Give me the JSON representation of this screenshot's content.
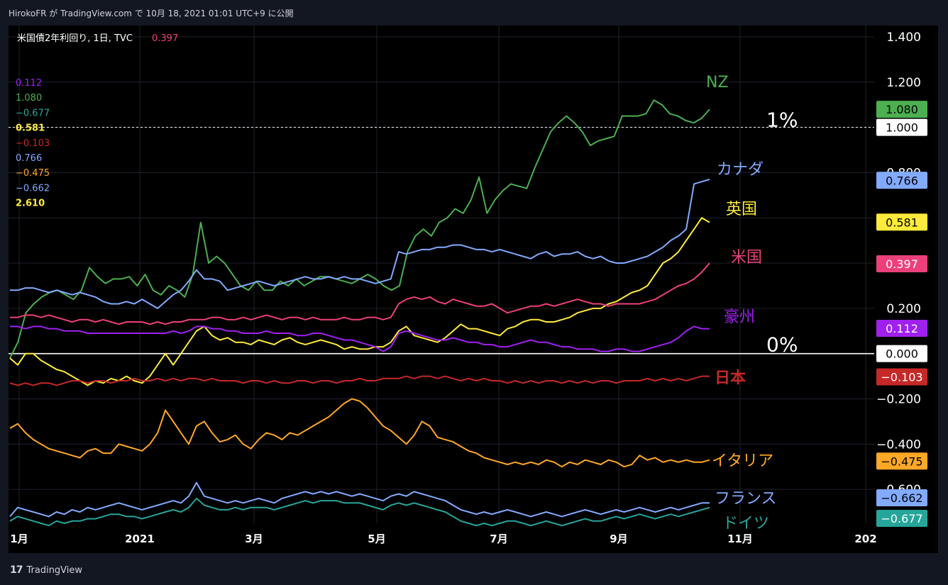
{
  "header": {
    "published": "HirokoFR が TradingView.com で 10月 18, 2021 01:01 UTC+9 に公開"
  },
  "legend": {
    "symbol": "米国債2年利回り, 1日, TVC",
    "symbol_value": "0.397",
    "values": [
      {
        "text": "0.112",
        "color": "#a020f0"
      },
      {
        "text": "1.080",
        "color": "#4caf50"
      },
      {
        "text": "−0.677",
        "color": "#26a69a"
      },
      {
        "text": "0.581",
        "color": "#ffeb3b"
      },
      {
        "text": "−0.103",
        "color": "#c62828"
      },
      {
        "text": "0.766",
        "color": "#82aaff"
      },
      {
        "text": "−0.475",
        "color": "#ffa726"
      },
      {
        "text": "−0.662",
        "color": "#82aaff"
      },
      {
        "text": "2.610",
        "color": "#ffeb3b"
      }
    ]
  },
  "annotations": {
    "one_pct": "1%",
    "zero_pct": "0%"
  },
  "footer": {
    "brand": "TradingView",
    "logo": "17"
  },
  "chart_data": {
    "type": "line",
    "ylim": [
      -0.75,
      1.45
    ],
    "y_ticks": [
      {
        "value": 1.4,
        "label": "1.400"
      },
      {
        "value": 1.2,
        "label": "1.200"
      },
      {
        "value": 0.8,
        "label": "0.800"
      },
      {
        "value": 0.2,
        "label": "0.200"
      },
      {
        "value": -0.2,
        "label": "−0.200"
      },
      {
        "value": -0.4,
        "label": "−0.400"
      },
      {
        "value": -0.6,
        "label": "−0.600"
      }
    ],
    "x_ticks": [
      "1月",
      "2021",
      "3月",
      "5月",
      "7月",
      "9月",
      "11月",
      "202"
    ],
    "hlines": [
      {
        "value": 1.0,
        "label": "1.000",
        "style": "dashed"
      },
      {
        "value": 0.0,
        "label": "0.000",
        "style": "solid"
      }
    ],
    "series": [
      {
        "name": "NZ",
        "color": "#4caf50",
        "last": "1.080",
        "values": [
          -0.02,
          0.05,
          0.18,
          0.22,
          0.25,
          0.27,
          0.28,
          0.26,
          0.24,
          0.28,
          0.38,
          0.34,
          0.31,
          0.33,
          0.33,
          0.34,
          0.3,
          0.35,
          0.28,
          0.26,
          0.3,
          0.28,
          0.25,
          0.35,
          0.58,
          0.4,
          0.43,
          0.4,
          0.35,
          0.3,
          0.28,
          0.32,
          0.28,
          0.28,
          0.32,
          0.3,
          0.33,
          0.3,
          0.32,
          0.34,
          0.34,
          0.33,
          0.32,
          0.31,
          0.33,
          0.35,
          0.33,
          0.3,
          0.28,
          0.3,
          0.45,
          0.52,
          0.55,
          0.52,
          0.58,
          0.6,
          0.64,
          0.62,
          0.68,
          0.78,
          0.62,
          0.68,
          0.72,
          0.75,
          0.74,
          0.73,
          0.82,
          0.9,
          0.98,
          1.02,
          1.05,
          1.02,
          0.98,
          0.92,
          0.94,
          0.95,
          0.96,
          1.05,
          1.05,
          1.05,
          1.06,
          1.12,
          1.1,
          1.06,
          1.05,
          1.03,
          1.02,
          1.04,
          1.08
        ]
      },
      {
        "name": "カナダ",
        "color": "#82aaff",
        "last": "0.766",
        "values": [
          0.28,
          0.28,
          0.29,
          0.29,
          0.28,
          0.27,
          0.28,
          0.27,
          0.26,
          0.27,
          0.26,
          0.25,
          0.23,
          0.22,
          0.22,
          0.23,
          0.22,
          0.24,
          0.22,
          0.2,
          0.23,
          0.26,
          0.28,
          0.32,
          0.37,
          0.33,
          0.33,
          0.32,
          0.28,
          0.29,
          0.3,
          0.31,
          0.32,
          0.31,
          0.3,
          0.31,
          0.32,
          0.33,
          0.34,
          0.33,
          0.33,
          0.34,
          0.33,
          0.34,
          0.33,
          0.33,
          0.32,
          0.31,
          0.32,
          0.33,
          0.45,
          0.44,
          0.45,
          0.46,
          0.46,
          0.47,
          0.47,
          0.48,
          0.48,
          0.47,
          0.46,
          0.46,
          0.45,
          0.46,
          0.45,
          0.44,
          0.43,
          0.42,
          0.44,
          0.45,
          0.43,
          0.44,
          0.44,
          0.45,
          0.43,
          0.42,
          0.43,
          0.41,
          0.4,
          0.4,
          0.41,
          0.42,
          0.43,
          0.45,
          0.47,
          0.5,
          0.52,
          0.55,
          0.75,
          0.76,
          0.77
        ]
      },
      {
        "name": "英国",
        "color": "#ffeb3b",
        "last": "0.581",
        "values": [
          -0.02,
          -0.05,
          0.0,
          0.0,
          -0.03,
          -0.05,
          -0.07,
          -0.08,
          -0.1,
          -0.12,
          -0.14,
          -0.12,
          -0.13,
          -0.11,
          -0.12,
          -0.1,
          -0.12,
          -0.13,
          -0.1,
          -0.05,
          0.0,
          -0.05,
          0.0,
          0.05,
          0.1,
          0.12,
          0.08,
          0.06,
          0.07,
          0.05,
          0.05,
          0.04,
          0.06,
          0.05,
          0.04,
          0.06,
          0.07,
          0.05,
          0.04,
          0.05,
          0.06,
          0.05,
          0.04,
          0.02,
          0.03,
          0.02,
          0.02,
          0.03,
          0.03,
          0.05,
          0.1,
          0.12,
          0.08,
          0.07,
          0.06,
          0.05,
          0.07,
          0.1,
          0.13,
          0.11,
          0.11,
          0.1,
          0.09,
          0.08,
          0.11,
          0.12,
          0.14,
          0.15,
          0.15,
          0.14,
          0.14,
          0.15,
          0.16,
          0.18,
          0.19,
          0.2,
          0.2,
          0.22,
          0.23,
          0.25,
          0.27,
          0.28,
          0.3,
          0.35,
          0.4,
          0.42,
          0.45,
          0.5,
          0.55,
          0.6,
          0.58
        ]
      },
      {
        "name": "米国",
        "color": "#ec407a",
        "last": "0.397",
        "values": [
          0.16,
          0.16,
          0.17,
          0.17,
          0.16,
          0.17,
          0.16,
          0.15,
          0.14,
          0.15,
          0.15,
          0.14,
          0.15,
          0.14,
          0.13,
          0.14,
          0.14,
          0.14,
          0.13,
          0.14,
          0.13,
          0.14,
          0.14,
          0.15,
          0.15,
          0.15,
          0.16,
          0.16,
          0.15,
          0.15,
          0.16,
          0.15,
          0.16,
          0.17,
          0.16,
          0.15,
          0.16,
          0.16,
          0.15,
          0.16,
          0.15,
          0.15,
          0.15,
          0.16,
          0.15,
          0.15,
          0.16,
          0.16,
          0.15,
          0.16,
          0.22,
          0.24,
          0.25,
          0.24,
          0.25,
          0.23,
          0.22,
          0.24,
          0.23,
          0.22,
          0.21,
          0.21,
          0.22,
          0.2,
          0.18,
          0.19,
          0.2,
          0.21,
          0.21,
          0.22,
          0.21,
          0.22,
          0.23,
          0.24,
          0.23,
          0.22,
          0.22,
          0.21,
          0.22,
          0.22,
          0.22,
          0.22,
          0.23,
          0.24,
          0.26,
          0.28,
          0.3,
          0.31,
          0.33,
          0.36,
          0.4
        ]
      },
      {
        "name": "豪州",
        "color": "#a020f0",
        "last": "0.112",
        "values": [
          0.12,
          0.12,
          0.11,
          0.12,
          0.12,
          0.11,
          0.11,
          0.1,
          0.1,
          0.1,
          0.09,
          0.09,
          0.09,
          0.09,
          0.09,
          0.09,
          0.09,
          0.09,
          0.09,
          0.09,
          0.09,
          0.1,
          0.09,
          0.1,
          0.12,
          0.12,
          0.11,
          0.11,
          0.1,
          0.1,
          0.09,
          0.09,
          0.09,
          0.1,
          0.09,
          0.09,
          0.09,
          0.08,
          0.08,
          0.09,
          0.09,
          0.08,
          0.07,
          0.06,
          0.06,
          0.05,
          0.04,
          0.03,
          0.01,
          0.03,
          0.09,
          0.1,
          0.09,
          0.08,
          0.07,
          0.06,
          0.06,
          0.07,
          0.06,
          0.05,
          0.05,
          0.04,
          0.04,
          0.03,
          0.03,
          0.04,
          0.05,
          0.06,
          0.05,
          0.05,
          0.04,
          0.03,
          0.03,
          0.02,
          0.02,
          0.02,
          0.01,
          0.01,
          0.02,
          0.02,
          0.01,
          0.01,
          0.02,
          0.03,
          0.04,
          0.05,
          0.07,
          0.1,
          0.12,
          0.11,
          0.11
        ]
      },
      {
        "name": "日本",
        "color": "#c62828",
        "last": "−0.103",
        "values": [
          -0.13,
          -0.14,
          -0.13,
          -0.14,
          -0.13,
          -0.13,
          -0.14,
          -0.13,
          -0.12,
          -0.12,
          -0.13,
          -0.12,
          -0.12,
          -0.13,
          -0.12,
          -0.12,
          -0.11,
          -0.12,
          -0.12,
          -0.11,
          -0.12,
          -0.11,
          -0.12,
          -0.11,
          -0.11,
          -0.12,
          -0.11,
          -0.12,
          -0.12,
          -0.12,
          -0.13,
          -0.12,
          -0.12,
          -0.13,
          -0.12,
          -0.13,
          -0.13,
          -0.12,
          -0.12,
          -0.13,
          -0.12,
          -0.12,
          -0.13,
          -0.12,
          -0.12,
          -0.11,
          -0.12,
          -0.12,
          -0.11,
          -0.11,
          -0.11,
          -0.1,
          -0.11,
          -0.1,
          -0.1,
          -0.11,
          -0.1,
          -0.11,
          -0.12,
          -0.11,
          -0.12,
          -0.11,
          -0.12,
          -0.12,
          -0.13,
          -0.12,
          -0.13,
          -0.12,
          -0.13,
          -0.12,
          -0.12,
          -0.13,
          -0.12,
          -0.13,
          -0.12,
          -0.13,
          -0.12,
          -0.12,
          -0.13,
          -0.12,
          -0.12,
          -0.12,
          -0.11,
          -0.12,
          -0.11,
          -0.12,
          -0.11,
          -0.12,
          -0.11,
          -0.1,
          -0.1
        ]
      },
      {
        "name": "イタリア",
        "color": "#ffa726",
        "last": "−0.475",
        "values": [
          -0.33,
          -0.31,
          -0.35,
          -0.38,
          -0.4,
          -0.42,
          -0.43,
          -0.44,
          -0.45,
          -0.46,
          -0.43,
          -0.42,
          -0.44,
          -0.44,
          -0.4,
          -0.41,
          -0.42,
          -0.43,
          -0.4,
          -0.35,
          -0.25,
          -0.3,
          -0.35,
          -0.4,
          -0.32,
          -0.3,
          -0.35,
          -0.39,
          -0.38,
          -0.36,
          -0.4,
          -0.42,
          -0.38,
          -0.35,
          -0.36,
          -0.38,
          -0.35,
          -0.36,
          -0.34,
          -0.32,
          -0.3,
          -0.28,
          -0.25,
          -0.22,
          -0.2,
          -0.21,
          -0.24,
          -0.28,
          -0.32,
          -0.34,
          -0.37,
          -0.4,
          -0.36,
          -0.3,
          -0.32,
          -0.37,
          -0.38,
          -0.39,
          -0.41,
          -0.43,
          -0.44,
          -0.46,
          -0.47,
          -0.48,
          -0.49,
          -0.48,
          -0.49,
          -0.48,
          -0.49,
          -0.47,
          -0.48,
          -0.5,
          -0.48,
          -0.49,
          -0.47,
          -0.48,
          -0.49,
          -0.47,
          -0.48,
          -0.5,
          -0.49,
          -0.45,
          -0.47,
          -0.46,
          -0.48,
          -0.47,
          -0.48,
          -0.47,
          -0.48,
          -0.48,
          -0.47
        ]
      },
      {
        "name": "フランス",
        "color": "#82aaff",
        "last": "−0.662",
        "values": [
          -0.72,
          -0.68,
          -0.69,
          -0.7,
          -0.71,
          -0.72,
          -0.7,
          -0.71,
          -0.69,
          -0.7,
          -0.68,
          -0.69,
          -0.68,
          -0.67,
          -0.66,
          -0.67,
          -0.68,
          -0.69,
          -0.68,
          -0.67,
          -0.66,
          -0.65,
          -0.66,
          -0.63,
          -0.57,
          -0.63,
          -0.64,
          -0.65,
          -0.66,
          -0.65,
          -0.66,
          -0.65,
          -0.64,
          -0.65,
          -0.66,
          -0.64,
          -0.63,
          -0.62,
          -0.61,
          -0.62,
          -0.61,
          -0.62,
          -0.61,
          -0.62,
          -0.63,
          -0.62,
          -0.63,
          -0.64,
          -0.65,
          -0.63,
          -0.62,
          -0.63,
          -0.61,
          -0.62,
          -0.63,
          -0.64,
          -0.65,
          -0.67,
          -0.69,
          -0.7,
          -0.71,
          -0.7,
          -0.71,
          -0.7,
          -0.69,
          -0.7,
          -0.71,
          -0.72,
          -0.71,
          -0.7,
          -0.71,
          -0.72,
          -0.71,
          -0.7,
          -0.69,
          -0.7,
          -0.71,
          -0.7,
          -0.69,
          -0.7,
          -0.69,
          -0.68,
          -0.69,
          -0.7,
          -0.69,
          -0.68,
          -0.69,
          -0.68,
          -0.67,
          -0.66,
          -0.66
        ]
      },
      {
        "name": "ドイツ",
        "color": "#26a69a",
        "last": "−0.677",
        "values": [
          -0.74,
          -0.72,
          -0.73,
          -0.74,
          -0.75,
          -0.76,
          -0.74,
          -0.75,
          -0.74,
          -0.74,
          -0.73,
          -0.73,
          -0.72,
          -0.71,
          -0.71,
          -0.72,
          -0.72,
          -0.73,
          -0.72,
          -0.71,
          -0.7,
          -0.69,
          -0.7,
          -0.68,
          -0.64,
          -0.67,
          -0.68,
          -0.69,
          -0.69,
          -0.68,
          -0.69,
          -0.68,
          -0.68,
          -0.68,
          -0.69,
          -0.68,
          -0.67,
          -0.66,
          -0.65,
          -0.66,
          -0.65,
          -0.65,
          -0.65,
          -0.66,
          -0.66,
          -0.66,
          -0.67,
          -0.68,
          -0.69,
          -0.67,
          -0.66,
          -0.67,
          -0.66,
          -0.67,
          -0.68,
          -0.69,
          -0.7,
          -0.72,
          -0.74,
          -0.75,
          -0.76,
          -0.75,
          -0.76,
          -0.75,
          -0.74,
          -0.74,
          -0.75,
          -0.76,
          -0.75,
          -0.74,
          -0.75,
          -0.76,
          -0.75,
          -0.74,
          -0.73,
          -0.74,
          -0.74,
          -0.73,
          -0.72,
          -0.73,
          -0.72,
          -0.71,
          -0.72,
          -0.73,
          -0.72,
          -0.71,
          -0.72,
          -0.71,
          -0.7,
          -0.69,
          -0.68
        ]
      }
    ],
    "right_tag_colors": {
      "1.000": "#ffffff",
      "0.000": "#ffffff"
    }
  }
}
